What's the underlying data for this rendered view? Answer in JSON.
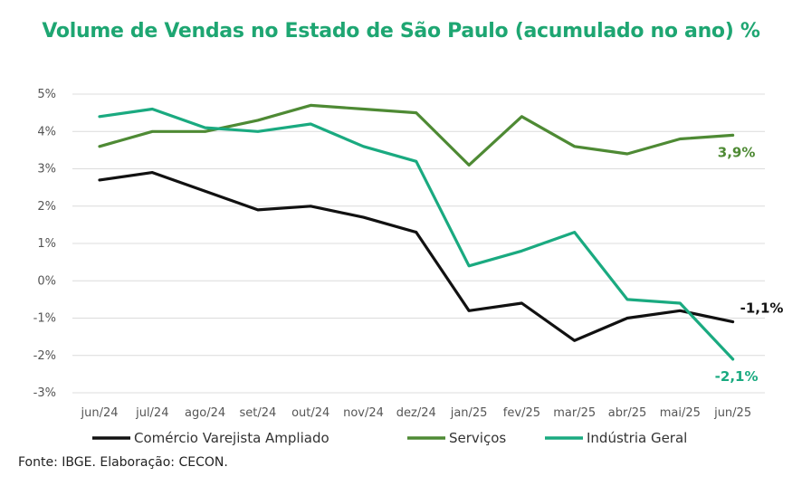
{
  "chart_data": {
    "type": "line",
    "title": "Volume de Vendas no Estado de São Paulo (acumulado no ano) %",
    "categories": [
      "jun/24",
      "jul/24",
      "ago/24",
      "set/24",
      "out/24",
      "nov/24",
      "dez/24",
      "jan/25",
      "fev/25",
      "mar/25",
      "abr/25",
      "mai/25",
      "jun/25"
    ],
    "y_ticks": [
      "5%",
      "4%",
      "3%",
      "2%",
      "1%",
      "0%",
      "-1%",
      "-2%",
      "-3%"
    ],
    "ylim": [
      -3,
      5
    ],
    "grid": true,
    "legend_position": "bottom",
    "series": [
      {
        "name": "Comércio Varejista Ampliado",
        "color": "#111111",
        "values": [
          2.7,
          2.9,
          2.4,
          1.9,
          2.0,
          1.7,
          1.3,
          -0.8,
          -0.6,
          -1.6,
          -1.0,
          -0.8,
          -1.1
        ],
        "end_label": "-1,1%"
      },
      {
        "name": "Serviços",
        "color": "#4e8a34",
        "values": [
          3.6,
          4.0,
          4.0,
          4.3,
          4.7,
          4.6,
          4.5,
          3.1,
          4.4,
          3.6,
          3.4,
          3.8,
          3.9
        ],
        "end_label": "3,9%"
      },
      {
        "name": "Indústria Geral",
        "color": "#1aaa80",
        "values": [
          4.4,
          4.6,
          4.1,
          4.0,
          4.2,
          3.6,
          3.2,
          0.4,
          0.8,
          1.3,
          -0.5,
          -0.6,
          -2.1
        ],
        "end_label": "-2,1%"
      }
    ]
  },
  "source": "Fonte: IBGE. Elaboração: CECON."
}
